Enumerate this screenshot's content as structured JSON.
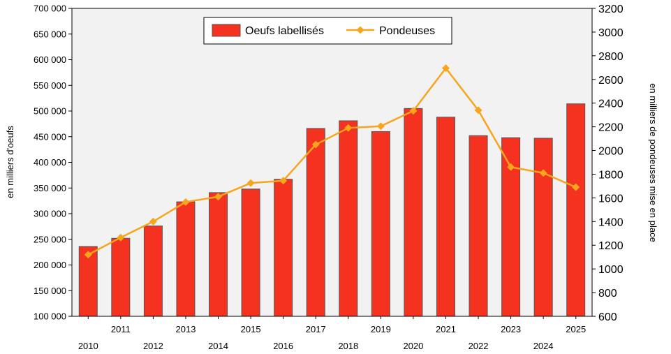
{
  "chart_data": {
    "type": "bar+line",
    "categories": [
      "2010",
      "2011",
      "2012",
      "2013",
      "2014",
      "2015",
      "2016",
      "2017",
      "2018",
      "2019",
      "2020",
      "2021",
      "2022",
      "2023",
      "2024",
      "2025"
    ],
    "series": [
      {
        "name": "Oeufs labellisés",
        "type": "bar",
        "axis": "left",
        "color": "#f5311f",
        "values": [
          236000,
          252000,
          276000,
          323000,
          341000,
          348000,
          367000,
          466000,
          481000,
          460000,
          505000,
          488000,
          452000,
          448000,
          447000,
          514000
        ]
      },
      {
        "name": "Pondeuses",
        "type": "line",
        "axis": "right",
        "color": "#f7a51c",
        "values": [
          1120,
          1265,
          1400,
          1565,
          1610,
          1725,
          1745,
          2050,
          2190,
          2205,
          2335,
          2695,
          2340,
          1860,
          1810,
          1690
        ]
      }
    ],
    "yleft": {
      "label": "en milliers d'oeufs",
      "ylim": [
        100000,
        700000
      ],
      "ticks": [
        "100 000",
        "150 000",
        "200 000",
        "250 000",
        "300 000",
        "350 000",
        "400 000",
        "450 000",
        "500 000",
        "550 000",
        "600 000",
        "650 000",
        "700 000"
      ]
    },
    "yright": {
      "label": "en milliers de pondeuses mise en place",
      "ylim": [
        600,
        3200
      ],
      "ticks": [
        "600",
        "800",
        "1000",
        "1200",
        "1400",
        "1600",
        "1800",
        "2000",
        "2200",
        "2400",
        "2600",
        "2800",
        "3000",
        "3200"
      ]
    },
    "legend_position": "top-center",
    "grid": false,
    "plot_background": "#f2f2f2"
  }
}
